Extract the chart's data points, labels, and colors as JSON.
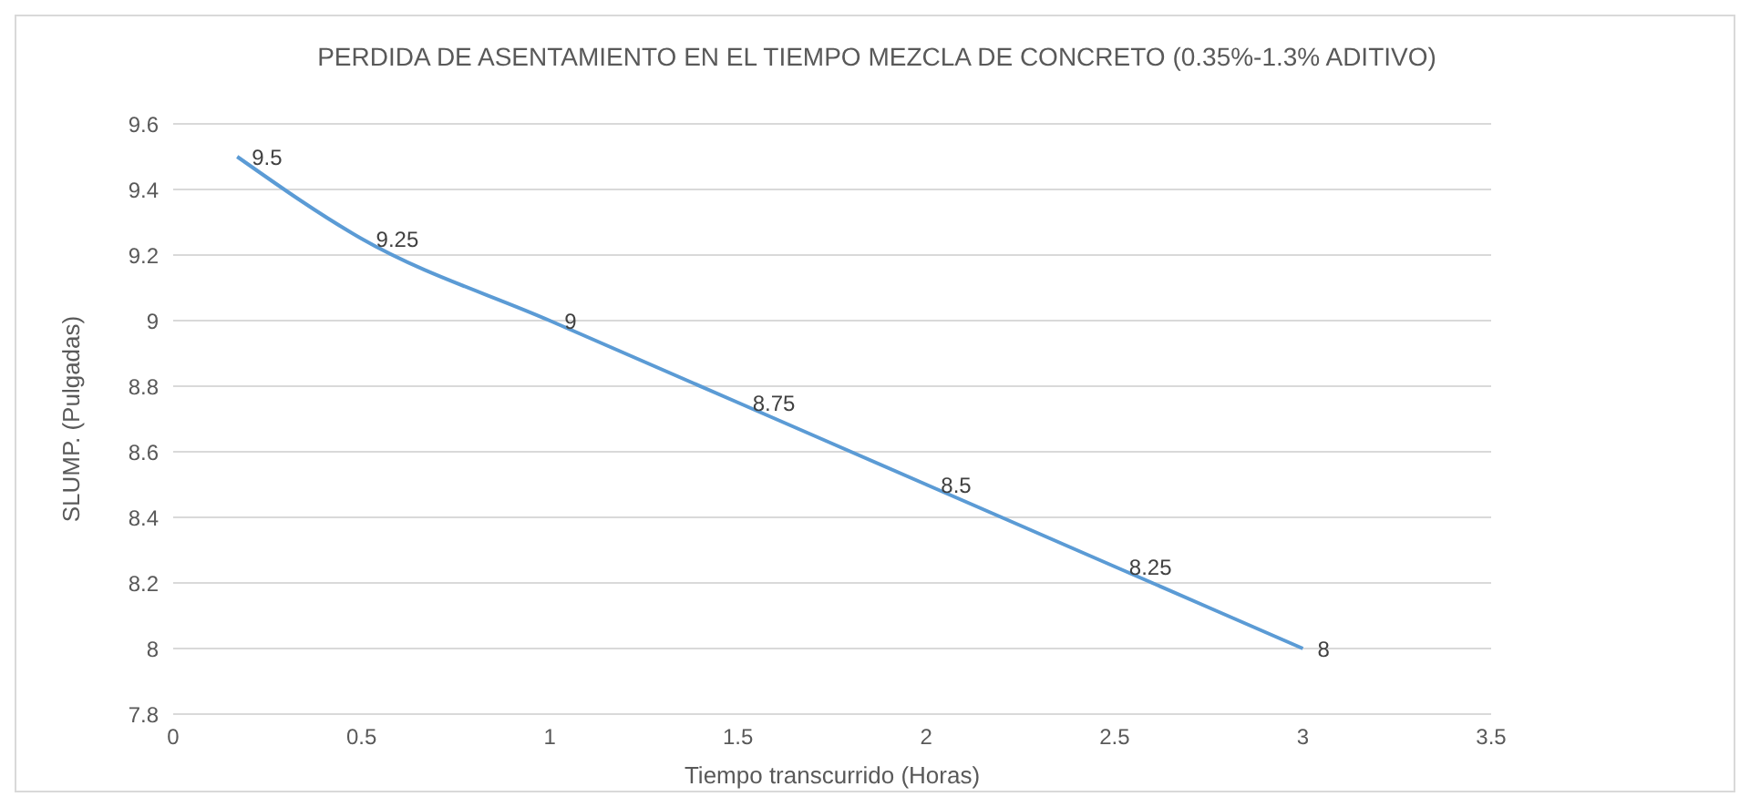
{
  "chart_data": {
    "type": "line",
    "title": "PERDIDA DE ASENTAMIENTO EN EL TIEMPO MEZCLA DE CONCRETO (0.35%-1.3% ADITIVO)",
    "xlabel": "Tiempo transcurrido (Horas)",
    "ylabel": "SLUMP. (Pulgadas)",
    "x": [
      0.17,
      0.5,
      1,
      1.5,
      2,
      2.5,
      3
    ],
    "series": [
      {
        "color": "#5b9bd5",
        "values": [
          9.5,
          9.25,
          9,
          8.75,
          8.5,
          8.25,
          8
        ]
      }
    ],
    "xlim": [
      0,
      3.5
    ],
    "xticks": [
      0,
      0.5,
      1,
      1.5,
      2,
      2.5,
      3,
      3.5
    ],
    "ylim": [
      7.8,
      9.6
    ],
    "yticks": [
      7.8,
      8,
      8.2,
      8.4,
      8.6,
      8.8,
      9,
      9.2,
      9.4,
      9.6
    ],
    "grid": "y",
    "marker": "none",
    "line_style": "solid",
    "data_labels": true
  }
}
